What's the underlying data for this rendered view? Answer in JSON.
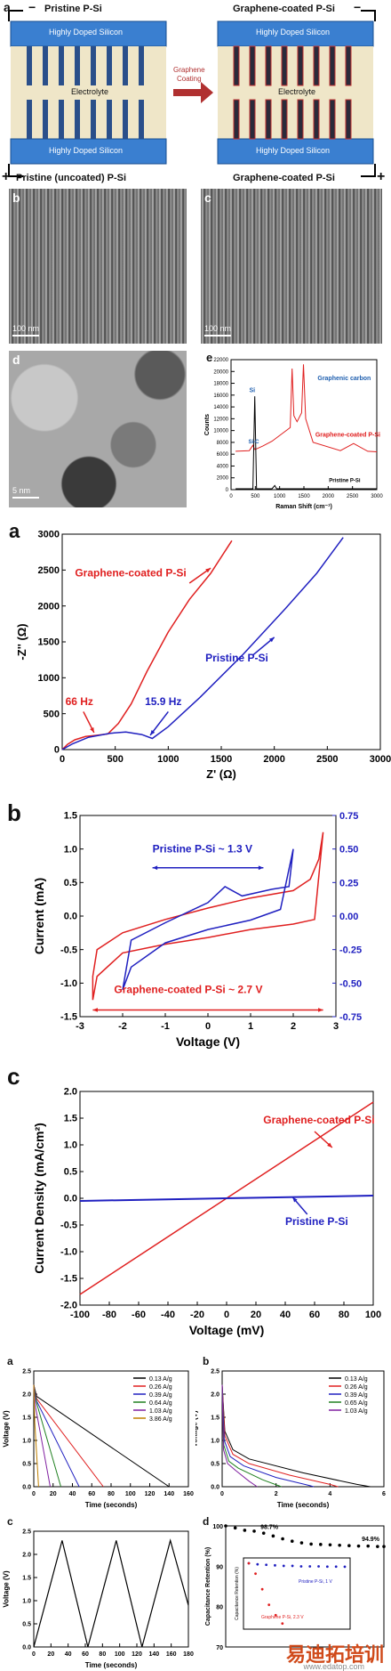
{
  "fig1": {
    "panel_a": "a",
    "left_title": "Pristine P-Si",
    "right_title": "Graphene-coated P-Si",
    "arrow_label_1": "Graphene",
    "arrow_label_2": "Coating",
    "doped_top": "Highly Doped Silicon",
    "electrolyte": "Electrolyte",
    "doped_bottom": "Highly Doped Silicon",
    "minus": "−",
    "plus": "+",
    "caption_left": "Pristine (uncoated) P-Si",
    "caption_right": "Graphene-coated P-Si",
    "panel_b": "b",
    "panel_c": "c",
    "panel_d": "d",
    "panel_e": "e",
    "scale_b": "100 nm",
    "scale_c": "100 nm",
    "scale_d": "5 nm"
  },
  "chart_data": [
    {
      "id": "raman",
      "type": "line",
      "panel": "e",
      "xlabel": "Raman Shift (cm⁻¹)",
      "ylabel": "Counts",
      "xlim": [
        0,
        3200
      ],
      "ylim": [
        0,
        22000
      ],
      "xticks": [
        "0",
        "500",
        "1000",
        "1500",
        "2000",
        "2500",
        "3000"
      ],
      "yticks": [
        "0",
        "2000",
        "4000",
        "6000",
        "8000",
        "10000",
        "12000",
        "14000",
        "16000",
        "18000",
        "20000",
        "22000"
      ],
      "annotations": [
        "Si",
        "Si-C",
        "Graphenic carbon",
        "Graphene-coated P-Si",
        "Pristine P-Si"
      ],
      "series": [
        {
          "name": "Graphene-coated P-Si",
          "color": "#e02020",
          "x": [
            100,
            400,
            480,
            520,
            560,
            700,
            900,
            1300,
            1340,
            1380,
            1450,
            1550,
            1590,
            1640,
            1800,
            2400,
            2690,
            3000,
            3200
          ],
          "y": [
            6500,
            6600,
            7500,
            6800,
            6900,
            7400,
            8200,
            10500,
            20500,
            12500,
            11500,
            13000,
            21200,
            12000,
            8000,
            6600,
            7800,
            6500,
            6400
          ]
        },
        {
          "name": "Pristine P-Si",
          "color": "#000000",
          "x": [
            100,
            480,
            520,
            560,
            900,
            960,
            1000,
            1500,
            3200
          ],
          "y": [
            150,
            150,
            15800,
            150,
            150,
            700,
            150,
            150,
            150
          ]
        }
      ]
    },
    {
      "id": "eis",
      "type": "line",
      "panel": "a",
      "xlabel": "Z' (Ω)",
      "ylabel": "-Z'' (Ω)",
      "xlim": [
        0,
        3000
      ],
      "ylim": [
        0,
        3300
      ],
      "xticks": [
        "0",
        "500",
        "1000",
        "1500",
        "2000",
        "2500",
        "3000"
      ],
      "yticks": [
        "0",
        "500",
        "1000",
        "1500",
        "2000",
        "2500",
        "3000"
      ],
      "annotations": [
        "Graphene-coated P-Si",
        "Pristine P-Si",
        "66 Hz",
        "15.9 Hz"
      ],
      "series": [
        {
          "name": "Graphene-coated P-Si",
          "color": "#e02020",
          "x": [
            0,
            50,
            120,
            220,
            330,
            430,
            530,
            650,
            800,
            1000,
            1200,
            1400,
            1600
          ],
          "y": [
            0,
            80,
            150,
            200,
            220,
            240,
            400,
            700,
            1200,
            1800,
            2300,
            2700,
            3200
          ]
        },
        {
          "name": "Pristine P-Si",
          "color": "#2020c0",
          "x": [
            0,
            100,
            250,
            450,
            600,
            750,
            850,
            1000,
            1300,
            1700,
            2100,
            2400,
            2650
          ],
          "y": [
            0,
            90,
            190,
            250,
            270,
            230,
            170,
            350,
            800,
            1450,
            2150,
            2700,
            3250
          ]
        }
      ]
    },
    {
      "id": "cv",
      "type": "line",
      "panel": "b",
      "xlabel": "Voltage (V)",
      "ylabel": "Current (mA)",
      "xlim": [
        -3,
        3
      ],
      "ylim": [
        -1.5,
        1.5
      ],
      "y2lim": [
        -0.75,
        0.75
      ],
      "xticks": [
        "-3",
        "-2",
        "-1",
        "0",
        "1",
        "2",
        "3"
      ],
      "yticks": [
        "-1.5",
        "-1.0",
        "-0.5",
        "0.0",
        "0.5",
        "1.0",
        "1.5"
      ],
      "y2ticks": [
        "-0.75",
        "-0.50",
        "-0.25",
        "0.00",
        "0.25",
        "0.50",
        "0.75"
      ],
      "annotations": [
        "Pristine P-Si ~ 1.3 V",
        "Graphene-coated P-Si ~ 2.7 V"
      ],
      "series": [
        {
          "name": "Graphene-coated P-Si",
          "color": "#e02020",
          "x": [
            -2.7,
            -2.6,
            -2.0,
            -1.0,
            0.0,
            1.0,
            2.0,
            2.5,
            2.7,
            2.6,
            2.4,
            2.0,
            1.0,
            0.0,
            -1.0,
            -2.0,
            -2.6,
            -2.7,
            -2.7
          ],
          "y": [
            -1.25,
            -0.9,
            -0.55,
            -0.42,
            -0.32,
            -0.2,
            -0.12,
            -0.05,
            1.25,
            0.85,
            0.55,
            0.38,
            0.27,
            0.12,
            -0.05,
            -0.25,
            -0.5,
            -0.9,
            -1.25
          ]
        },
        {
          "name": "Pristine P-Si",
          "color": "#2020c0",
          "x": [
            -2.0,
            -1.8,
            -1.0,
            0.0,
            1.0,
            1.7,
            2.0,
            1.9,
            1.5,
            0.8,
            0.4,
            0.0,
            -1.0,
            -1.8,
            -2.0
          ],
          "y": [
            -0.55,
            -0.38,
            -0.2,
            -0.1,
            -0.03,
            0.05,
            0.5,
            0.22,
            0.2,
            0.15,
            0.22,
            0.1,
            -0.05,
            -0.18,
            -0.55
          ]
        }
      ]
    },
    {
      "id": "iv",
      "type": "line",
      "panel": "c",
      "xlabel": "Voltage (mV)",
      "ylabel": "Current Density (mA/cm²)",
      "xlim": [
        -100,
        100
      ],
      "ylim": [
        -2.0,
        2.0
      ],
      "xticks": [
        "-100",
        "-80",
        "-60",
        "-40",
        "-20",
        "0",
        "20",
        "40",
        "60",
        "80",
        "100"
      ],
      "yticks": [
        "-2.0",
        "-1.5",
        "-1.0",
        "-0.5",
        "0.0",
        "0.5",
        "1.0",
        "1.5",
        "2.0"
      ],
      "annotations": [
        "Graphene-coated P-Si",
        "Pristine P-Si"
      ],
      "series": [
        {
          "name": "Graphene-coated P-Si",
          "color": "#e02020",
          "x": [
            -100,
            100
          ],
          "y": [
            -1.8,
            1.8
          ]
        },
        {
          "name": "Pristine P-Si",
          "color": "#2020c0",
          "x": [
            -100,
            100
          ],
          "y": [
            -0.05,
            0.05
          ]
        }
      ]
    },
    {
      "id": "gcd_a",
      "type": "line",
      "panel": "a",
      "xlabel": "Time (seconds)",
      "ylabel": "Voltage (V)",
      "xlim": [
        0,
        160
      ],
      "ylim": [
        0,
        2.5
      ],
      "xticks": [
        "0",
        "20",
        "40",
        "60",
        "80",
        "100",
        "120",
        "140",
        "160"
      ],
      "yticks": [
        "0.0",
        "0.5",
        "1.0",
        "1.5",
        "2.0",
        "2.5"
      ],
      "legend": [
        "0.13 A/g",
        "0.26 A/g",
        "0.39 A/g",
        "0.64 A/g",
        "1.03 A/g",
        "3.86 A/g"
      ],
      "series": [
        {
          "name": "0.13 A/g",
          "color": "#000000",
          "x": [
            0,
            3,
            140
          ],
          "y": [
            2.2,
            1.95,
            0
          ]
        },
        {
          "name": "0.26 A/g",
          "color": "#e02020",
          "x": [
            0,
            3,
            72
          ],
          "y": [
            2.2,
            1.9,
            0
          ]
        },
        {
          "name": "0.39 A/g",
          "color": "#2020c0",
          "x": [
            0,
            3,
            47
          ],
          "y": [
            2.2,
            1.85,
            0
          ]
        },
        {
          "name": "0.64 A/g",
          "color": "#208020",
          "x": [
            0,
            3,
            28
          ],
          "y": [
            2.2,
            1.8,
            0
          ]
        },
        {
          "name": "1.03 A/g",
          "color": "#8020a0",
          "x": [
            0,
            2,
            17
          ],
          "y": [
            2.2,
            1.7,
            0
          ]
        },
        {
          "name": "3.86 A/g",
          "color": "#c08000",
          "x": [
            0,
            1,
            5
          ],
          "y": [
            2.2,
            1.4,
            0
          ]
        }
      ]
    },
    {
      "id": "gcd_b",
      "type": "line",
      "panel": "b",
      "xlabel": "Time (seconds)",
      "ylabel": "Voltage (V)",
      "xlim": [
        0,
        6
      ],
      "ylim": [
        0,
        2.5
      ],
      "xticks": [
        "0",
        "2",
        "4",
        "6"
      ],
      "yticks": [
        "0.0",
        "0.5",
        "1.0",
        "1.5",
        "2.0",
        "2.5"
      ],
      "legend": [
        "0.13 A/g",
        "0.26 A/g",
        "0.39 A/g",
        "0.65 A/g",
        "1.03 A/g"
      ],
      "series": [
        {
          "name": "0.13 A/g",
          "color": "#000000",
          "x": [
            0,
            0.1,
            0.4,
            1.0,
            3.0,
            5.0,
            5.5
          ],
          "y": [
            2.2,
            1.2,
            0.8,
            0.6,
            0.3,
            0.05,
            0
          ]
        },
        {
          "name": "0.26 A/g",
          "color": "#e02020",
          "x": [
            0,
            0.1,
            0.4,
            1.0,
            2.5,
            4.0,
            4.3
          ],
          "y": [
            2.2,
            1.1,
            0.7,
            0.5,
            0.25,
            0.05,
            0
          ]
        },
        {
          "name": "0.39 A/g",
          "color": "#2020c0",
          "x": [
            0,
            0.08,
            0.3,
            0.8,
            2.0,
            3.2,
            3.4
          ],
          "y": [
            2.2,
            1.0,
            0.65,
            0.45,
            0.2,
            0.03,
            0
          ]
        },
        {
          "name": "0.65 A/g",
          "color": "#208020",
          "x": [
            0,
            0.06,
            0.25,
            0.6,
            1.5,
            2.2
          ],
          "y": [
            2.2,
            0.9,
            0.55,
            0.4,
            0.15,
            0
          ]
        },
        {
          "name": "1.03 A/g",
          "color": "#8020a0",
          "x": [
            0,
            0.05,
            0.2,
            0.5,
            1.0,
            1.3
          ],
          "y": [
            2.2,
            0.8,
            0.5,
            0.35,
            0.12,
            0
          ]
        }
      ]
    },
    {
      "id": "gcd_c",
      "type": "line",
      "panel": "c",
      "xlabel": "Time (seconds)",
      "ylabel": "Voltage (V)",
      "xlim": [
        0,
        180
      ],
      "ylim": [
        0,
        2.5
      ],
      "xticks": [
        "0",
        "20",
        "40",
        "60",
        "80",
        "100",
        "120",
        "140",
        "160",
        "180"
      ],
      "yticks": [
        "0.0",
        "0.5",
        "1.0",
        "1.5",
        "2.0",
        "2.5"
      ],
      "series": [
        {
          "name": "",
          "color": "#000000",
          "x": [
            0,
            33,
            63,
            96,
            126,
            159,
            180
          ],
          "y": [
            0,
            2.3,
            0,
            2.3,
            0,
            2.3,
            0.9
          ]
        }
      ]
    },
    {
      "id": "retention",
      "type": "scatter",
      "panel": "d",
      "xlabel": "",
      "ylabel": "Capacitance Retention (%)",
      "ylim": [
        70,
        100
      ],
      "yticks": [
        "70",
        "80",
        "90",
        "100"
      ],
      "annotations": [
        "98.7%",
        "94.9%"
      ],
      "series": [
        {
          "name": "",
          "color": "#000000",
          "x": [
            0,
            300,
            600,
            900,
            1200,
            1500,
            1800,
            2100,
            2400,
            2700,
            3000,
            3300,
            3600,
            3900,
            4200,
            4500,
            4800,
            5000
          ],
          "y": [
            100,
            99.5,
            98.9,
            98.7,
            98.2,
            97.5,
            96.8,
            96.2,
            95.8,
            95.5,
            95.4,
            95.3,
            95.2,
            95.1,
            95.0,
            95.0,
            94.9,
            94.9
          ]
        }
      ],
      "inset": {
        "ylabel": "Capacitance Retention (%)",
        "annotations": [
          "Pristine P-Si, 1 V",
          "Graphene P-Si, 2.3 V"
        ],
        "series": [
          {
            "name": "Pristine P-Si, 1 V",
            "color": "#2020c0",
            "y": [
              100,
              99,
              98.5,
              98,
              97.5,
              97.5,
              97,
              97,
              97,
              96.8,
              96.8,
              96.7
            ]
          },
          {
            "name": "Graphene P-Si, 2.3 V",
            "color": "#e02020",
            "y": [
              100,
              90,
              75,
              60,
              50,
              42
            ]
          }
        ]
      }
    }
  ],
  "labels": {
    "eis_panel": "a",
    "cv_panel": "b",
    "iv_panel": "c",
    "gcd_a": "a",
    "gcd_b": "b",
    "gcd_c": "c",
    "gcd_d": "d"
  },
  "watermark": "易迪拓培训",
  "watermark_sub": "www.edatop.com"
}
